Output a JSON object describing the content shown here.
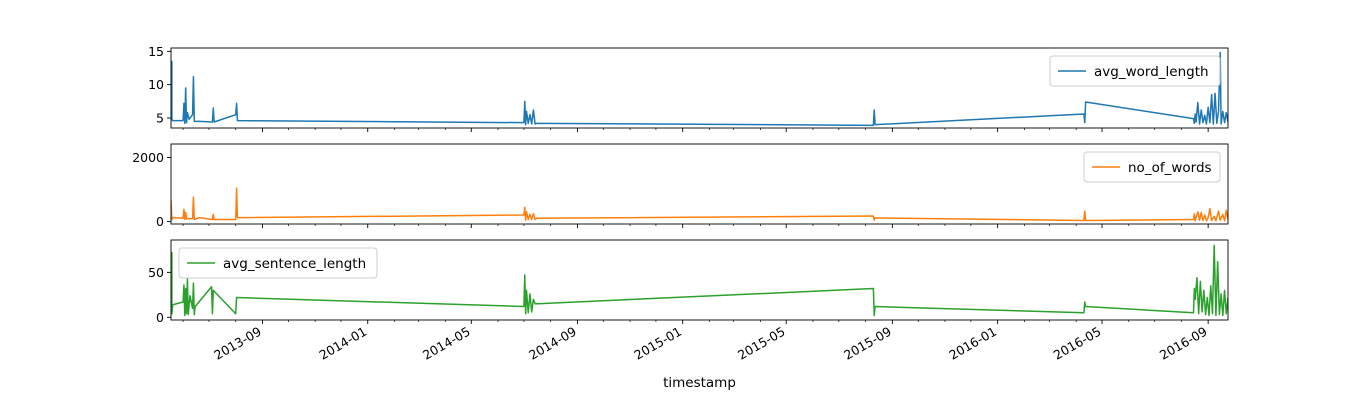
{
  "chart_data": {
    "type": "line",
    "xlabel": "timestamp",
    "x_ticks": [
      "2013-09",
      "2014-01",
      "2014-05",
      "2014-09",
      "2015-01",
      "2015-05",
      "2015-09",
      "2016-01",
      "2016-05",
      "2016-09"
    ],
    "x_range": [
      "2013-05-18",
      "2016-09-24"
    ],
    "legend_placement": [
      "top-right",
      "top-right",
      "top-left"
    ],
    "colors": {
      "avg_word_length": "#1f77b4",
      "no_of_words": "#ff7f0e",
      "avg_sentence_length": "#2ca02c"
    },
    "panels": [
      {
        "series_name": "avg_word_length",
        "ylim": [
          3.5,
          15.5
        ],
        "y_ticks": [
          "5",
          "10",
          "15"
        ],
        "points": [
          [
            "2013-05-18",
            5.0
          ],
          [
            "2013-05-19",
            13.5
          ],
          [
            "2013-05-19",
            4.8
          ],
          [
            "2013-05-20",
            4.6
          ],
          [
            "2013-06-01",
            4.6
          ],
          [
            "2013-06-02",
            7.2
          ],
          [
            "2013-06-03",
            4.2
          ],
          [
            "2013-06-04",
            9.5
          ],
          [
            "2013-06-05",
            4.3
          ],
          [
            "2013-06-06",
            5.8
          ],
          [
            "2013-06-08",
            4.8
          ],
          [
            "2013-06-12",
            5.5
          ],
          [
            "2013-06-13",
            11.2
          ],
          [
            "2013-06-14",
            4.5
          ],
          [
            "2013-06-20",
            4.5
          ],
          [
            "2013-07-05",
            4.4
          ],
          [
            "2013-07-06",
            6.5
          ],
          [
            "2013-07-07",
            4.4
          ],
          [
            "2013-08-01",
            5.5
          ],
          [
            "2013-08-02",
            7.2
          ],
          [
            "2013-08-03",
            4.6
          ],
          [
            "2014-07-01",
            4.3
          ],
          [
            "2014-07-02",
            7.5
          ],
          [
            "2014-07-03",
            4.0
          ],
          [
            "2014-07-04",
            6.0
          ],
          [
            "2014-07-06",
            4.2
          ],
          [
            "2014-07-08",
            5.5
          ],
          [
            "2014-07-10",
            4.1
          ],
          [
            "2014-07-12",
            6.2
          ],
          [
            "2014-07-14",
            4.1
          ],
          [
            "2014-07-16",
            4.2
          ],
          [
            "2015-08-10",
            3.9
          ],
          [
            "2015-08-11",
            6.2
          ],
          [
            "2015-08-12",
            4.0
          ],
          [
            "2016-04-10",
            5.6
          ],
          [
            "2016-04-11",
            4.3
          ],
          [
            "2016-04-12",
            7.4
          ],
          [
            "2016-08-15",
            4.9
          ],
          [
            "2016-08-16",
            4.2
          ],
          [
            "2016-08-17",
            5.6
          ],
          [
            "2016-08-18",
            4.4
          ],
          [
            "2016-08-20",
            7.3
          ],
          [
            "2016-08-22",
            4.1
          ],
          [
            "2016-08-24",
            6.2
          ],
          [
            "2016-08-26",
            4.3
          ],
          [
            "2016-08-28",
            5.4
          ],
          [
            "2016-08-30",
            4.1
          ],
          [
            "2016-09-01",
            6.6
          ],
          [
            "2016-09-03",
            4.3
          ],
          [
            "2016-09-05",
            8.5
          ],
          [
            "2016-09-07",
            4.1
          ],
          [
            "2016-09-09",
            8.7
          ],
          [
            "2016-09-11",
            4.2
          ],
          [
            "2016-09-13",
            6.0
          ],
          [
            "2016-09-15",
            14.8
          ],
          [
            "2016-09-16",
            4.1
          ],
          [
            "2016-09-18",
            6.0
          ],
          [
            "2016-09-20",
            4.3
          ],
          [
            "2016-09-22",
            5.8
          ],
          [
            "2016-09-24",
            4.4
          ]
        ]
      },
      {
        "series_name": "no_of_words",
        "ylim": [
          -80,
          2420
        ],
        "y_ticks": [
          "0",
          "2000"
        ],
        "points": [
          [
            "2013-05-18",
            650
          ],
          [
            "2013-05-19",
            60
          ],
          [
            "2013-05-20",
            120
          ],
          [
            "2013-06-01",
            100
          ],
          [
            "2013-06-02",
            380
          ],
          [
            "2013-06-03",
            60
          ],
          [
            "2013-06-04",
            280
          ],
          [
            "2013-06-05",
            80
          ],
          [
            "2013-06-12",
            90
          ],
          [
            "2013-06-13",
            760
          ],
          [
            "2013-06-14",
            60
          ],
          [
            "2013-06-20",
            120
          ],
          [
            "2013-07-05",
            60
          ],
          [
            "2013-07-06",
            220
          ],
          [
            "2013-07-07",
            60
          ],
          [
            "2013-08-01",
            60
          ],
          [
            "2013-08-02",
            1040
          ],
          [
            "2013-08-03",
            120
          ],
          [
            "2014-07-01",
            200
          ],
          [
            "2014-07-02",
            440
          ],
          [
            "2014-07-03",
            40
          ],
          [
            "2014-07-04",
            300
          ],
          [
            "2014-07-06",
            60
          ],
          [
            "2014-07-08",
            220
          ],
          [
            "2014-07-10",
            60
          ],
          [
            "2014-07-12",
            240
          ],
          [
            "2014-07-14",
            60
          ],
          [
            "2014-07-16",
            100
          ],
          [
            "2015-08-10",
            170
          ],
          [
            "2015-08-11",
            40
          ],
          [
            "2015-08-12",
            110
          ],
          [
            "2016-04-10",
            30
          ],
          [
            "2016-04-11",
            320
          ],
          [
            "2016-04-12",
            30
          ],
          [
            "2016-08-15",
            60
          ],
          [
            "2016-08-16",
            240
          ],
          [
            "2016-08-17",
            20
          ],
          [
            "2016-08-20",
            300
          ],
          [
            "2016-08-22",
            40
          ],
          [
            "2016-08-24",
            280
          ],
          [
            "2016-08-26",
            30
          ],
          [
            "2016-08-28",
            200
          ],
          [
            "2016-08-30",
            20
          ],
          [
            "2016-09-01",
            120
          ],
          [
            "2016-09-03",
            400
          ],
          [
            "2016-09-05",
            30
          ],
          [
            "2016-09-08",
            160
          ],
          [
            "2016-09-10",
            20
          ],
          [
            "2016-09-13",
            320
          ],
          [
            "2016-09-15",
            40
          ],
          [
            "2016-09-18",
            220
          ],
          [
            "2016-09-20",
            20
          ],
          [
            "2016-09-22",
            350
          ],
          [
            "2016-09-24",
            60
          ]
        ]
      },
      {
        "series_name": "avg_sentence_length",
        "ylim": [
          -3,
          86
        ],
        "y_ticks": [
          "0",
          "50"
        ],
        "points": [
          [
            "2013-05-18",
            28
          ],
          [
            "2013-05-19",
            72
          ],
          [
            "2013-05-19",
            4
          ],
          [
            "2013-05-20",
            14
          ],
          [
            "2013-06-01",
            17
          ],
          [
            "2013-06-02",
            36
          ],
          [
            "2013-06-03",
            2
          ],
          [
            "2013-06-04",
            32
          ],
          [
            "2013-06-05",
            4
          ],
          [
            "2013-06-06",
            43
          ],
          [
            "2013-06-07",
            3
          ],
          [
            "2013-06-09",
            24
          ],
          [
            "2013-06-12",
            10
          ],
          [
            "2013-06-13",
            38
          ],
          [
            "2013-06-14",
            3
          ],
          [
            "2013-06-15",
            12
          ],
          [
            "2013-07-04",
            34
          ],
          [
            "2013-07-05",
            4
          ],
          [
            "2013-07-06",
            30
          ],
          [
            "2013-08-01",
            4
          ],
          [
            "2013-08-02",
            22
          ],
          [
            "2014-07-01",
            12
          ],
          [
            "2014-07-02",
            47
          ],
          [
            "2014-07-03",
            4
          ],
          [
            "2014-07-04",
            30
          ],
          [
            "2014-07-06",
            5
          ],
          [
            "2014-07-08",
            26
          ],
          [
            "2014-07-10",
            6
          ],
          [
            "2014-07-12",
            20
          ],
          [
            "2014-07-14",
            15
          ],
          [
            "2015-08-10",
            32
          ],
          [
            "2015-08-11",
            2
          ],
          [
            "2015-08-12",
            12
          ],
          [
            "2016-04-10",
            5
          ],
          [
            "2016-04-11",
            17
          ],
          [
            "2016-04-12",
            12
          ],
          [
            "2016-08-15",
            5
          ],
          [
            "2016-08-16",
            32
          ],
          [
            "2016-08-17",
            20
          ],
          [
            "2016-08-19",
            44
          ],
          [
            "2016-08-21",
            4
          ],
          [
            "2016-08-23",
            40
          ],
          [
            "2016-08-25",
            6
          ],
          [
            "2016-08-27",
            30
          ],
          [
            "2016-08-29",
            3
          ],
          [
            "2016-08-31",
            22
          ],
          [
            "2016-09-02",
            2
          ],
          [
            "2016-09-04",
            35
          ],
          [
            "2016-09-06",
            4
          ],
          [
            "2016-09-08",
            80
          ],
          [
            "2016-09-10",
            2
          ],
          [
            "2016-09-12",
            62
          ],
          [
            "2016-09-14",
            3
          ],
          [
            "2016-09-16",
            26
          ],
          [
            "2016-09-18",
            2
          ],
          [
            "2016-09-20",
            30
          ],
          [
            "2016-09-22",
            4
          ],
          [
            "2016-09-24",
            22
          ]
        ]
      }
    ]
  }
}
